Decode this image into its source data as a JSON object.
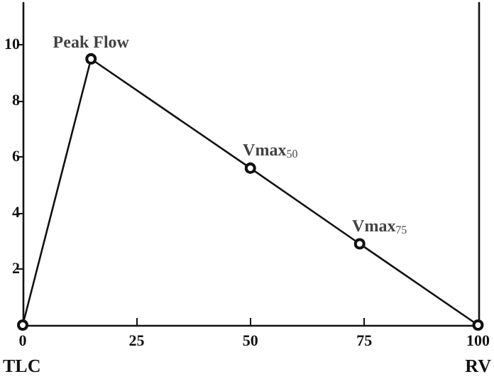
{
  "chart_data": {
    "type": "line",
    "x": [
      0,
      15,
      50,
      74,
      100
    ],
    "series": [
      {
        "color": "#111111",
        "values": [
          0,
          9.5,
          5.6,
          2.9,
          0
        ]
      }
    ],
    "xlim": [
      0,
      100
    ],
    "xticks": [
      0,
      25,
      50,
      75,
      100
    ],
    "ylim": [
      0,
      11.5
    ],
    "yticks": [
      2,
      4,
      6,
      8,
      10
    ],
    "marker": "circle",
    "line_style": "solid",
    "grid": false,
    "annotations": [
      {
        "text": "Peak Flow",
        "x": 15,
        "y": 9.5
      },
      {
        "text": "Vmax$_{50}$",
        "x": 50,
        "y": 5.6
      },
      {
        "text": "Vmax$_{75}$",
        "x": 74,
        "y": 2.9
      },
      "TLC",
      "RV"
    ]
  }
}
